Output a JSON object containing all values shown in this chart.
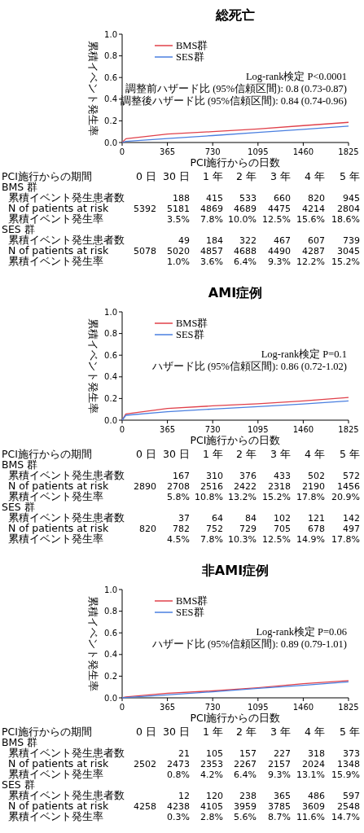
{
  "chart_data": [
    {
      "type": "line",
      "title": "総死亡",
      "xlabel": "PCI施行からの日数",
      "ylabel": "累積イベント発生率",
      "xlim": [
        0,
        1825
      ],
      "ylim": [
        0,
        1
      ],
      "xticks": [
        0,
        365,
        730,
        1095,
        1460,
        1825
      ],
      "yticks": [
        {
          "value": 0,
          "label": "0.0"
        },
        {
          "value": 0.2,
          "label": "0.2"
        },
        {
          "value": 0.4,
          "label": "0.4"
        },
        {
          "value": 0.6,
          "label": "0.6"
        },
        {
          "value": 0.8,
          "label": "0.8"
        },
        {
          "value": 1,
          "label": "1.0"
        }
      ],
      "legend": "top left",
      "x": [
        0,
        30,
        365,
        730,
        1095,
        1460,
        1825
      ],
      "series": [
        {
          "name": "BMS群",
          "color": "#e0404a",
          "values": [
            0,
            0.035,
            0.078,
            0.1,
            0.125,
            0.156,
            0.186
          ]
        },
        {
          "name": "SES群",
          "color": "#4a7fe0",
          "values": [
            0,
            0.01,
            0.036,
            0.064,
            0.093,
            0.122,
            0.152
          ]
        }
      ],
      "annotations": [
        "Log-rank検定 P<0.0001",
        "調整前ハザード比 (95%信頼区間): 0.8 (0.73-0.87)",
        "調整後ハザード比 (95%信頼区間): 0.84 (0.74-0.96)",
        "PCI施行からの期間  0 日  30 日  1 年  2 年  3 年  4 年  5 年",
        "BMS 群",
        "累積イベント発生患者数  188  415  533  660  820  945",
        "N of patients at risk  5392  5181  4869  4689  4475  4214  2804",
        "累積イベント発生率  3.5%  7.8%  10.0%  12.5%  15.6%  18.6%",
        "SES 群",
        "累積イベント発生患者数  49  184  322  467  607  739",
        "N of patients at risk  5078  5020  4857  4688  4490  4287  3045",
        "累積イベント発生率  1.0%  3.6%  6.4%  9.3%  12.2%  15.2%"
      ]
    },
    {
      "type": "line",
      "title": "AMI症例",
      "xlabel": "PCI施行からの日数",
      "ylabel": "累積イベント発生率",
      "xlim": [
        0,
        1825
      ],
      "ylim": [
        0,
        1
      ],
      "xticks": [
        0,
        365,
        730,
        1095,
        1460,
        1825
      ],
      "yticks": [
        {
          "value": 0,
          "label": "0.0"
        },
        {
          "value": 0.2,
          "label": "0.2"
        },
        {
          "value": 0.4,
          "label": "0.4"
        },
        {
          "value": 0.6,
          "label": "0.6"
        },
        {
          "value": 0.8,
          "label": "0.8"
        },
        {
          "value": 1,
          "label": "1.0"
        }
      ],
      "legend": "top left",
      "x": [
        0,
        30,
        365,
        730,
        1095,
        1460,
        1825
      ],
      "series": [
        {
          "name": "BMS群",
          "color": "#e0404a",
          "values": [
            0,
            0.058,
            0.108,
            0.132,
            0.152,
            0.178,
            0.209
          ]
        },
        {
          "name": "SES群",
          "color": "#4a7fe0",
          "values": [
            0,
            0.045,
            0.078,
            0.103,
            0.125,
            0.149,
            0.178
          ]
        }
      ],
      "annotations": [
        "Log-rank検定 P=0.1",
        "ハザード比 (95%信頼区間): 0.86 (0.72-1.02)",
        "PCI施行からの期間  0 日  30 日  1 年  2 年  3 年  4 年  5 年",
        "BMS 群",
        "累積イベント発生患者数  167  310  376  433  502  572",
        "N of patients at risk  2890  2708  2516  2422  2318  2190  1456",
        "累積イベント発生率  5.8%  10.8%  13.2%  15.2%  17.8%  20.9%",
        "SES 群",
        "累積イベント発生患者数  37  64  84  102  121  142",
        "N of patients at risk  820  782  752  729  705  678  497",
        "累積イベント発生率  4.5%  7.8%  10.3%  12.5%  14.9%  17.8%"
      ]
    },
    {
      "type": "line",
      "title": "非AMI症例",
      "xlabel": "PCI施行からの日数",
      "ylabel": "累積イベント発生率",
      "xlim": [
        0,
        1825
      ],
      "ylim": [
        0,
        1
      ],
      "xticks": [
        0,
        365,
        730,
        1095,
        1460,
        1825
      ],
      "yticks": [
        {
          "value": 0,
          "label": "0.0"
        },
        {
          "value": 0.2,
          "label": "0.2"
        },
        {
          "value": 0.4,
          "label": "0.4"
        },
        {
          "value": 0.6,
          "label": "0.6"
        },
        {
          "value": 0.8,
          "label": "0.8"
        },
        {
          "value": 1,
          "label": "1.0"
        }
      ],
      "legend": "top left",
      "x": [
        0,
        30,
        365,
        730,
        1095,
        1460,
        1825
      ],
      "series": [
        {
          "name": "BMS群",
          "color": "#e0404a",
          "values": [
            0,
            0.008,
            0.042,
            0.064,
            0.093,
            0.131,
            0.159
          ]
        },
        {
          "name": "SES群",
          "color": "#4a7fe0",
          "values": [
            0,
            0.003,
            0.028,
            0.056,
            0.087,
            0.116,
            0.147
          ]
        }
      ],
      "annotations": [
        "Log-rank検定 P=0.06",
        "ハザード比 (95%信頼区間): 0.89 (0.79-1.01)",
        "PCI施行からの期間  0 日  30 日  1 年  2 年  3 年  4 年  5 年",
        "BMS 群",
        "累積イベント発生患者数  21  105  157  227  318  373",
        "N of patients at risk  2502  2473  2353  2267  2157  2024  1348",
        "累積イベント発生率  0.8%  4.2%  6.4%  9.3%  13.1%  15.9%",
        "SES 群",
        "累積イベント発生患者数  12  120  238  365  486  597",
        "N of patients at risk  4258  4238  4105  3959  3785  3609  2548",
        "累積イベント発生率  0.3%  2.8%  5.6%  8.7%  11.6%  14.7%"
      ]
    }
  ]
}
